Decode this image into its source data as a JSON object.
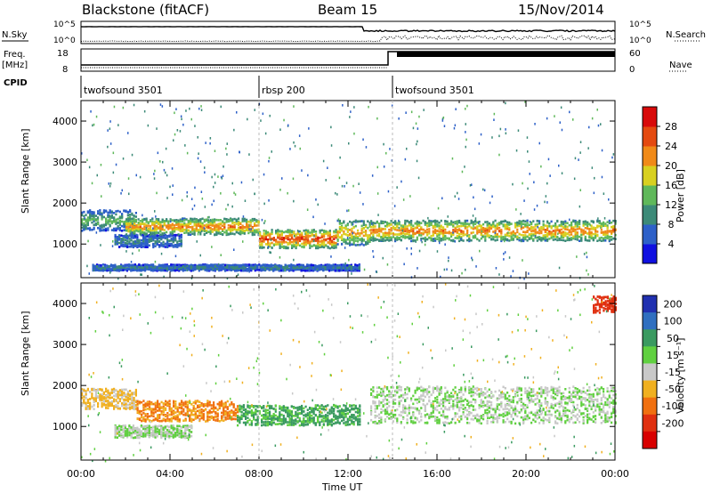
{
  "header": {
    "station": "Blackstone (fitACF)",
    "beam": "Beam 15",
    "date": "15/Nov/2014"
  },
  "left_labels": {
    "nsky": "N.Sky",
    "freq_line1": "Freq.",
    "freq_line2": "[MHz]",
    "cpid": "CPID"
  },
  "right_labels": {
    "nsearch": "N.Search",
    "nave": "Nave"
  },
  "top_panels": {
    "nsky_ticks": [
      "10^5",
      "10^0"
    ],
    "nsearch_ticks": [
      "10^5",
      "10^0"
    ],
    "freq_ticks": [
      "18",
      "8"
    ],
    "nave_ticks": [
      "60",
      "0"
    ]
  },
  "cpid_segments": [
    {
      "label": "twofsound 3501",
      "start_hour": 0
    },
    {
      "label": "rbsp 200",
      "start_hour": 8
    },
    {
      "label": "twofsound 3501",
      "start_hour": 14
    }
  ],
  "axes": {
    "x_title": "Time UT",
    "x_ticks": [
      "00:00",
      "04:00",
      "08:00",
      "12:00",
      "16:00",
      "20:00",
      "00:00"
    ],
    "y_title": "Slant Range [km]",
    "y_ticks": [
      "1000",
      "2000",
      "3000",
      "4000"
    ]
  },
  "colorbars": {
    "power": {
      "title": "Power [dB]",
      "ticks": [
        "4",
        "8",
        "12",
        "16",
        "20",
        "24",
        "28"
      ],
      "colors": [
        "#1010e0",
        "#2d60c8",
        "#3c8a78",
        "#5fb85a",
        "#d8d020",
        "#f08a18",
        "#e44a10",
        "#d80a0a"
      ]
    },
    "velocity": {
      "title": "Velocity [m s⁻¹]",
      "ticks": [
        "200",
        "100",
        "50",
        "15",
        "-15",
        "-50",
        "-100",
        "-200"
      ],
      "colors": [
        "#2030b0",
        "#2f6fc0",
        "#3a9a60",
        "#60d040",
        "#c8c8c8",
        "#f0b020",
        "#f07010",
        "#e03010",
        "#d80000"
      ]
    }
  },
  "chart_data": [
    {
      "type": "heatmap",
      "title": "Power",
      "xlabel": "Time UT",
      "ylabel": "Slant Range [km]",
      "x_range_hours": [
        0,
        24
      ],
      "y_range_km": [
        180,
        4500
      ],
      "colorbar_range_db": [
        0,
        32
      ],
      "bands": [
        {
          "start_hour": 0.0,
          "end_hour": 2.5,
          "center_km": 1600,
          "width_km": 500,
          "peak_db": 14
        },
        {
          "start_hour": 1.5,
          "end_hour": 4.5,
          "center_km": 1100,
          "width_km": 300,
          "peak_db": 10
        },
        {
          "start_hour": 2.0,
          "end_hour": 8.0,
          "center_km": 1450,
          "width_km": 400,
          "peak_db": 24
        },
        {
          "start_hour": 8.0,
          "end_hour": 11.5,
          "center_km": 1150,
          "width_km": 450,
          "peak_db": 28
        },
        {
          "start_hour": 11.5,
          "end_hour": 13.0,
          "center_km": 1300,
          "width_km": 600,
          "peak_db": 22
        },
        {
          "start_hour": 13.0,
          "end_hour": 24.0,
          "center_km": 1350,
          "width_km": 500,
          "peak_db": 24
        },
        {
          "start_hour": 0.5,
          "end_hour": 12.5,
          "center_km": 450,
          "width_km": 150,
          "peak_db": 10
        }
      ]
    },
    {
      "type": "heatmap",
      "title": "Velocity",
      "xlabel": "Time UT",
      "ylabel": "Slant Range [km]",
      "x_range_hours": [
        0,
        24
      ],
      "y_range_km": [
        180,
        4500
      ],
      "colorbar_range_ms": [
        -250,
        250
      ],
      "bands": [
        {
          "start_hour": 0.0,
          "end_hour": 2.5,
          "center_km": 1700,
          "width_km": 500,
          "velocity_ms": -40
        },
        {
          "start_hour": 2.5,
          "end_hour": 7.0,
          "center_km": 1400,
          "width_km": 500,
          "velocity_ms": -80
        },
        {
          "start_hour": 1.5,
          "end_hour": 5.0,
          "center_km": 900,
          "width_km": 300,
          "velocity_ms": 0
        },
        {
          "start_hour": 7.0,
          "end_hour": 12.5,
          "center_km": 1300,
          "width_km": 500,
          "velocity_ms": 40
        },
        {
          "start_hour": 13.0,
          "end_hour": 24.0,
          "center_km": 1550,
          "width_km": 900,
          "velocity_ms": 0
        },
        {
          "start_hour": 23.0,
          "end_hour": 24.0,
          "center_km": 4000,
          "width_km": 400,
          "velocity_ms": -180
        }
      ]
    }
  ]
}
